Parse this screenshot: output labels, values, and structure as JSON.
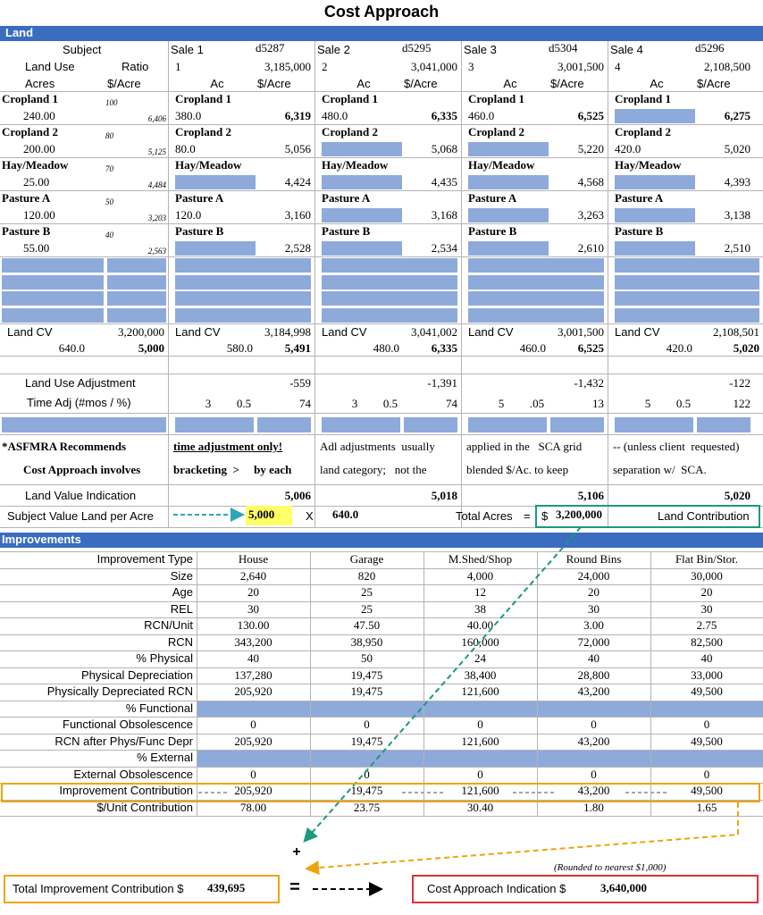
{
  "title": "Cost Approach",
  "land": {
    "heading": "Land",
    "subject": {
      "header": "Subject",
      "land_use": "Land Use",
      "ratio": "Ratio",
      "acres": "Acres",
      "per_acre": "$/Acre"
    },
    "sales": [
      {
        "header": "Sale 1",
        "id": "d5287",
        "number": "1",
        "price": "3,185,000",
        "acres": "Ac",
        "per_acre": "$/Acre"
      },
      {
        "header": "Sale 2",
        "id": "d5295",
        "number": "2",
        "price": "3,041,000",
        "acres": "Ac",
        "per_acre": "$/Acre"
      },
      {
        "header": "Sale 3",
        "id": "d5304",
        "number": "3",
        "price": "3,001,500",
        "acres": "Ac",
        "per_acre": "$/Acre"
      },
      {
        "header": "Sale 4",
        "id": "d5296",
        "number": "4",
        "price": "2,108,500",
        "acres": "Ac",
        "per_acre": "$/Acre"
      }
    ],
    "categories": [
      {
        "name": "Cropland 1",
        "acres": "240.00",
        "ratio": "100",
        "per_acre": "6,406",
        "sales": [
          {
            "name": "Cropland 1",
            "acres": "380.0",
            "per_acre": "6,319"
          },
          {
            "name": "Cropland 1",
            "acres": "480.0",
            "per_acre": "6,335"
          },
          {
            "name": "Cropland 1",
            "acres": "460.0",
            "per_acre": "6,525"
          },
          {
            "name": "Cropland 1",
            "acres": null,
            "per_acre": "6,275"
          }
        ]
      },
      {
        "name": "Cropland 2",
        "acres": "200.00",
        "ratio": "80",
        "per_acre": "5,125",
        "sales": [
          {
            "name": "Cropland 2",
            "acres": "80.0",
            "per_acre": "5,056"
          },
          {
            "name": "Cropland 2",
            "acres": null,
            "per_acre": "5,068"
          },
          {
            "name": "Cropland 2",
            "acres": null,
            "per_acre": "5,220"
          },
          {
            "name": "Cropland 2",
            "acres": "420.0",
            "per_acre": "5,020"
          }
        ]
      },
      {
        "name": "Hay/Meadow",
        "acres": "25.00",
        "ratio": "70",
        "per_acre": "4,484",
        "sales": [
          {
            "name": "Hay/Meadow",
            "acres": null,
            "per_acre": "4,424"
          },
          {
            "name": "Hay/Meadow",
            "acres": null,
            "per_acre": "4,435"
          },
          {
            "name": "Hay/Meadow",
            "acres": null,
            "per_acre": "4,568"
          },
          {
            "name": "Hay/Meadow",
            "acres": null,
            "per_acre": "4,393"
          }
        ]
      },
      {
        "name": "Pasture A",
        "acres": "120.00",
        "ratio": "50",
        "per_acre": "3,203",
        "sales": [
          {
            "name": "Pasture A",
            "acres": "120.0",
            "per_acre": "3,160"
          },
          {
            "name": "Pasture A",
            "acres": null,
            "per_acre": "3,168"
          },
          {
            "name": "Pasture A",
            "acres": null,
            "per_acre": "3,263"
          },
          {
            "name": "Pasture A",
            "acres": null,
            "per_acre": "3,138"
          }
        ]
      },
      {
        "name": "Pasture B",
        "acres": "55.00",
        "ratio": "40",
        "per_acre": "2,563",
        "sales": [
          {
            "name": "Pasture B",
            "acres": null,
            "per_acre": "2,528"
          },
          {
            "name": "Pasture B",
            "acres": null,
            "per_acre": "2,534"
          },
          {
            "name": "Pasture B",
            "acres": null,
            "per_acre": "2,610"
          },
          {
            "name": "Pasture B",
            "acres": null,
            "per_acre": "2,510"
          }
        ]
      }
    ],
    "land_cv": [
      {
        "label": "Land CV",
        "total": "3,200,000",
        "acres": "640.0",
        "per_acre": "5,000"
      },
      {
        "label": "Land CV",
        "total": "3,184,998",
        "acres": "580.0",
        "per_acre": "5,491"
      },
      {
        "label": "Land CV",
        "total": "3,041,002",
        "acres": "480.0",
        "per_acre": "6,335"
      },
      {
        "label": "Land CV",
        "total": "3,001,500",
        "acres": "460.0",
        "per_acre": "6,525"
      },
      {
        "label": "Land CV",
        "total": "2,108,501",
        "acres": "420.0",
        "per_acre": "5,020"
      }
    ],
    "land_use_adjustment": {
      "label": "Land Use Adjustment",
      "values": [
        "-559",
        "-1,391",
        "-1,432",
        "-122"
      ]
    },
    "time_adjustment": {
      "label": "Time Adj (#mos / %)",
      "values": [
        [
          "3",
          "0.5",
          "74"
        ],
        [
          "3",
          "0.5",
          "74"
        ],
        [
          "5",
          ".05",
          "13"
        ],
        [
          "5",
          "0.5",
          "122"
        ]
      ]
    },
    "notes": [
      [
        "*ASFMRA Recommends",
        "time adjustment only!",
        "Adl adjustments  usually",
        "applied in the   SCA grid",
        "-- (unless client  requested)"
      ],
      [
        "Cost Approach involves",
        "bracketing  >     by each",
        "land category;   not the",
        "blended $/Ac. to keep",
        "separation w/  SCA."
      ]
    ],
    "land_value_indication": {
      "label": "Land Value Indication",
      "values": [
        "5,006",
        "5,018",
        "5,106",
        "5,020"
      ]
    },
    "subject_value": {
      "label": "Subject Value Land per Acre",
      "per_acre": "5,000",
      "times": "X",
      "acres": "640.0",
      "total_label": "Total Acres",
      "equals": "=",
      "currency": "$",
      "total": "3,200,000",
      "contribution_label": "Land Contribution"
    }
  },
  "improvements": {
    "heading": "Improvements",
    "type_label": "Improvement Type",
    "columns": [
      "House",
      "Garage",
      "M.Shed/Shop",
      "Round Bins",
      "Flat Bin/Stor."
    ],
    "rows": [
      {
        "label": "Size",
        "values": [
          "2,640",
          "820",
          "4,000",
          "24,000",
          "30,000"
        ]
      },
      {
        "label": "Age",
        "values": [
          "20",
          "25",
          "12",
          "20",
          "20"
        ]
      },
      {
        "label": "REL",
        "values": [
          "30",
          "25",
          "38",
          "30",
          "30"
        ]
      },
      {
        "label": "RCN/Unit",
        "values": [
          "130.00",
          "47.50",
          "40.00",
          "3.00",
          "2.75"
        ]
      },
      {
        "label": "RCN",
        "values": [
          "343,200",
          "38,950",
          "160,000",
          "72,000",
          "82,500"
        ]
      },
      {
        "label": "% Physical",
        "values": [
          "40",
          "50",
          "24",
          "40",
          "40"
        ]
      },
      {
        "label": "Physical Depreciation",
        "values": [
          "137,280",
          "19,475",
          "38,400",
          "28,800",
          "33,000"
        ]
      },
      {
        "label": "Physically Depreciated RCN",
        "values": [
          "205,920",
          "19,475",
          "121,600",
          "43,200",
          "49,500"
        ]
      },
      {
        "label": "% Functional",
        "values": [
          null,
          null,
          null,
          null,
          null
        ]
      },
      {
        "label": "Functional Obsolescence",
        "values": [
          "0",
          "0",
          "0",
          "0",
          "0"
        ]
      },
      {
        "label": "RCN after Phys/Func Depr",
        "values": [
          "205,920",
          "19,475",
          "121,600",
          "43,200",
          "49,500"
        ]
      },
      {
        "label": "% External",
        "values": [
          null,
          null,
          null,
          null,
          null
        ]
      },
      {
        "label": "External Obsolescence",
        "values": [
          "0",
          "0",
          "0",
          "0",
          "0"
        ]
      },
      {
        "label": "Improvement Contribution",
        "values": [
          "205,920",
          "19,475",
          "121,600",
          "43,200",
          "49,500"
        ]
      },
      {
        "label": "$/Unit Contribution",
        "values": [
          "78.00",
          "23.75",
          "30.40",
          "1.80",
          "1.65"
        ]
      }
    ]
  },
  "summary": {
    "plus": "+",
    "rounding_note": "(Rounded to nearest $1,000)",
    "improvement_label": "Total Improvement Contribution $",
    "improvement_total": "439,695",
    "equals": "=",
    "indication_label": "Cost Approach Indication $",
    "indication": "3,640,000"
  }
}
